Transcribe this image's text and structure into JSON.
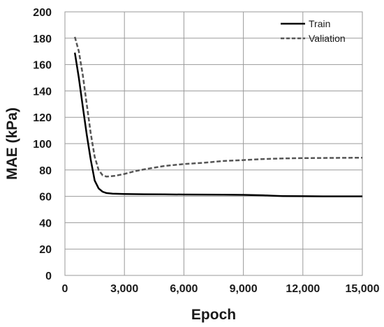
{
  "chart_data": {
    "type": "line",
    "title": "",
    "xlabel": "Epoch",
    "ylabel": "MAE (kPa)",
    "xlim": [
      0,
      15000
    ],
    "ylim": [
      0,
      200
    ],
    "x_ticks": [
      "0",
      "3,000",
      "6,000",
      "9,000",
      "12,000",
      "15,000"
    ],
    "y_ticks": [
      "0",
      "20",
      "40",
      "60",
      "80",
      "100",
      "120",
      "140",
      "160",
      "180",
      "200"
    ],
    "grid": true,
    "legend_position": "top-right",
    "series": [
      {
        "name": "Train",
        "style": "solid",
        "color": "#000000",
        "x": [
          500,
          700,
          900,
          1100,
          1300,
          1500,
          1700,
          1900,
          2100,
          2400,
          3000,
          4000,
          5000,
          6000,
          7000,
          8000,
          9000,
          10000,
          10500,
          11000,
          12000,
          13000,
          14000,
          15000
        ],
        "y": [
          169,
          150,
          128,
          107,
          88,
          72,
          66,
          63.5,
          62.5,
          62,
          61.8,
          61.6,
          61.5,
          61.4,
          61.3,
          61.2,
          61.1,
          60.8,
          60.4,
          60.2,
          60.1,
          60,
          60,
          60
        ]
      },
      {
        "name": "Valiation",
        "style": "dashed",
        "color": "#555555",
        "x": [
          500,
          700,
          900,
          1100,
          1300,
          1500,
          1700,
          1900,
          2100,
          2500,
          3000,
          3500,
          4000,
          5000,
          6000,
          7000,
          8000,
          9000,
          10000,
          11000,
          12000,
          13000,
          14000,
          15000
        ],
        "y": [
          181,
          170,
          152,
          130,
          108,
          90,
          80,
          76,
          75,
          75.5,
          77,
          79,
          80.5,
          83,
          84.5,
          85.5,
          86.8,
          87.5,
          88.3,
          88.8,
          89,
          89.1,
          89.2,
          89.3
        ]
      }
    ]
  }
}
